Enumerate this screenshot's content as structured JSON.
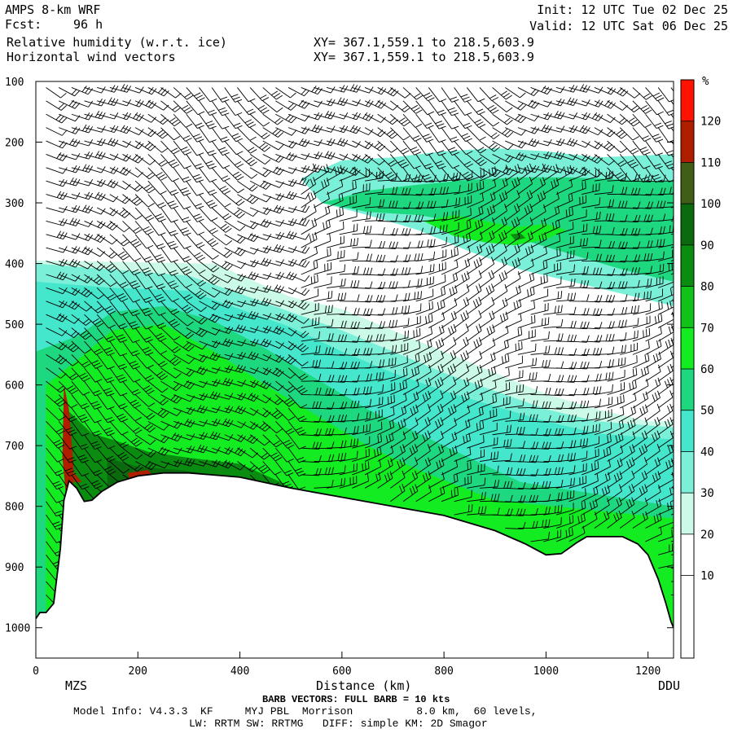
{
  "header": {
    "model": "AMPS 8-km WRF",
    "forecast_label": "Fcst:",
    "forecast_value": "96 h",
    "field1": "Relative humidity (w.r.t. ice)",
    "field2": "Horizontal wind vectors",
    "xy1": "XY= 367.1,559.1 to 218.5,603.9",
    "xy2": "XY= 367.1,559.1 to 218.5,603.9",
    "init": "Init: 12 UTC Tue 02 Dec 25",
    "valid": "Valid: 12 UTC Sat 06 Dec 25"
  },
  "footer": {
    "barb_note": "BARB VECTORS: FULL BARB = 10 kts",
    "model_info": "Model Info: V4.3.3  KF     MYJ PBL  Morrison          8.0 km,  60 levels,",
    "physics": "LW: RRTM SW: RRTMG   DIFF: simple KM: 2D Smagor"
  },
  "colorbar": {
    "unit": "%",
    "levels": [
      10,
      20,
      30,
      40,
      50,
      60,
      70,
      80,
      90,
      100,
      110,
      120
    ],
    "labels": [
      "10",
      "20",
      "30",
      "40",
      "50",
      "60",
      "70",
      "80",
      "90",
      "100",
      "110",
      "120"
    ],
    "colors": [
      "#ffffff",
      "#ffffff",
      "#ffffff",
      "#ccfae8",
      "#7af0d8",
      "#44e6cc",
      "#1ed880",
      "#14ec22",
      "#10c21a",
      "#0a8c10",
      "#0b6a0d",
      "#3e5f15",
      "#b01e00",
      "#ff1300"
    ]
  },
  "chart_data": {
    "type": "heatmap",
    "title": "Relative humidity (w.r.t. ice)",
    "xlabel": "Distance (km)",
    "ylabel": "",
    "xlim": [
      0,
      1250
    ],
    "ylim": [
      1050,
      100
    ],
    "x_ticks": [
      0,
      200,
      400,
      600,
      800,
      1000,
      1200
    ],
    "x_tick_labels": [
      "0",
      "200",
      "400",
      "600",
      "800",
      "1000",
      "1200"
    ],
    "y_ticks": [
      100,
      200,
      300,
      400,
      500,
      600,
      700,
      800,
      900,
      1000
    ],
    "y_tick_labels": [
      "100",
      "200",
      "300",
      "400",
      "500",
      "600",
      "700",
      "800",
      "900",
      "1000"
    ],
    "endpoints": {
      "left": "MZS",
      "right": "DDU"
    },
    "terrain_pressure": {
      "x": [
        0,
        8,
        20,
        35,
        48,
        55,
        65,
        80,
        95,
        110,
        130,
        160,
        200,
        250,
        300,
        400,
        500,
        600,
        700,
        800,
        900,
        960,
        1000,
        1030,
        1060,
        1080,
        1100,
        1150,
        1180,
        1200,
        1220,
        1235,
        1245,
        1250
      ],
      "p": [
        985,
        975,
        975,
        960,
        870,
        790,
        758,
        770,
        792,
        790,
        775,
        760,
        750,
        745,
        745,
        752,
        770,
        785,
        800,
        815,
        840,
        862,
        880,
        878,
        860,
        850,
        850,
        850,
        862,
        880,
        920,
        960,
        990,
        1000
      ]
    },
    "rh_regions": [
      {
        "name": "",
        "value": 35,
        "points": [
          [
            0,
            395
          ],
          [
            200,
            398
          ],
          [
            350,
            400
          ],
          [
            430,
            430
          ],
          [
            500,
            455
          ],
          [
            600,
            475
          ],
          [
            700,
            510
          ],
          [
            800,
            545
          ],
          [
            900,
            580
          ],
          [
            1000,
            615
          ],
          [
            1100,
            640
          ],
          [
            1200,
            660
          ],
          [
            1250,
            660
          ],
          [
            1250,
            1000
          ],
          [
            0,
            1000
          ]
        ]
      },
      {
        "name": "",
        "value": 45,
        "points": [
          [
            0,
            400
          ],
          [
            150,
            410
          ],
          [
            300,
            420
          ],
          [
            400,
            450
          ],
          [
            500,
            480
          ],
          [
            600,
            510
          ],
          [
            700,
            545
          ],
          [
            800,
            580
          ],
          [
            900,
            610
          ],
          [
            1000,
            640
          ],
          [
            1100,
            660
          ],
          [
            1250,
            670
          ],
          [
            1250,
            1000
          ],
          [
            0,
            1000
          ]
        ]
      },
      {
        "name": "",
        "value": 55,
        "points": [
          [
            0,
            430
          ],
          [
            150,
            440
          ],
          [
            300,
            445
          ],
          [
            400,
            475
          ],
          [
            500,
            505
          ],
          [
            600,
            545
          ],
          [
            700,
            580
          ],
          [
            800,
            610
          ],
          [
            900,
            635
          ],
          [
            1000,
            660
          ],
          [
            1100,
            680
          ],
          [
            1250,
            690
          ],
          [
            1250,
            1000
          ],
          [
            0,
            1000
          ]
        ]
      },
      {
        "name": "",
        "value": 65,
        "points": [
          [
            0,
            545
          ],
          [
            80,
            520
          ],
          [
            150,
            480
          ],
          [
            250,
            470
          ],
          [
            350,
            495
          ],
          [
            450,
            540
          ],
          [
            550,
            590
          ],
          [
            650,
            640
          ],
          [
            750,
            680
          ],
          [
            850,
            720
          ],
          [
            950,
            760
          ],
          [
            1100,
            780
          ],
          [
            1250,
            800
          ],
          [
            1250,
            1000
          ],
          [
            0,
            1000
          ]
        ]
      },
      {
        "name": "",
        "value": 75,
        "points": [
          [
            20,
            600
          ],
          [
            80,
            560
          ],
          [
            150,
            510
          ],
          [
            250,
            500
          ],
          [
            350,
            545
          ],
          [
            450,
            600
          ],
          [
            550,
            650
          ],
          [
            650,
            700
          ],
          [
            750,
            740
          ],
          [
            900,
            790
          ],
          [
            1250,
            820
          ],
          [
            1250,
            1000
          ],
          [
            20,
            1000
          ]
        ]
      },
      {
        "name": "",
        "value": 90,
        "points": [
          [
            60,
            640
          ],
          [
            110,
            680
          ],
          [
            150,
            690
          ],
          [
            220,
            710
          ],
          [
            300,
            720
          ],
          [
            400,
            730
          ],
          [
            480,
            760
          ],
          [
            560,
            800
          ],
          [
            480,
            800
          ],
          [
            100,
            800
          ],
          [
            60,
            760
          ]
        ]
      },
      {
        "name": "",
        "value": 105,
        "points": [
          [
            140,
            720
          ],
          [
            200,
            735
          ],
          [
            280,
            740
          ],
          [
            350,
            748
          ],
          [
            420,
            760
          ],
          [
            420,
            770
          ],
          [
            140,
            770
          ]
        ]
      },
      {
        "name": "",
        "value": 125,
        "points": [
          [
            55,
            600
          ],
          [
            65,
            640
          ],
          [
            70,
            690
          ],
          [
            75,
            750
          ],
          [
            70,
            780
          ],
          [
            60,
            790
          ],
          [
            52,
            720
          ]
        ]
      },
      {
        "name": "",
        "value": 125,
        "points": [
          [
            75,
            745
          ],
          [
            90,
            760
          ],
          [
            75,
            760
          ]
        ]
      },
      {
        "name": "",
        "value": 125,
        "points": [
          [
            180,
            745
          ],
          [
            220,
            740
          ],
          [
            230,
            750
          ],
          [
            185,
            758
          ]
        ]
      },
      {
        "name": "",
        "value": 45,
        "points": [
          [
            520,
            260
          ],
          [
            600,
            230
          ],
          [
            700,
            225
          ],
          [
            800,
            215
          ],
          [
            900,
            210
          ],
          [
            1000,
            215
          ],
          [
            1100,
            225
          ],
          [
            1250,
            220
          ],
          [
            1250,
            470
          ],
          [
            1150,
            450
          ],
          [
            1050,
            430
          ],
          [
            950,
            410
          ],
          [
            850,
            380
          ],
          [
            750,
            345
          ],
          [
            650,
            320
          ],
          [
            560,
            300
          ]
        ]
      },
      {
        "name": "",
        "value": 65,
        "points": [
          [
            560,
            300
          ],
          [
            650,
            280
          ],
          [
            750,
            270
          ],
          [
            850,
            262
          ],
          [
            950,
            258
          ],
          [
            1050,
            258
          ],
          [
            1150,
            262
          ],
          [
            1250,
            265
          ],
          [
            1250,
            430
          ],
          [
            1150,
            410
          ],
          [
            1050,
            385
          ],
          [
            950,
            360
          ],
          [
            850,
            335
          ],
          [
            750,
            320
          ],
          [
            650,
            315
          ]
        ]
      },
      {
        "name": "",
        "value": 75,
        "points": [
          [
            760,
            330
          ],
          [
            820,
            320
          ],
          [
            880,
            330
          ],
          [
            940,
            340
          ],
          [
            1000,
            335
          ],
          [
            1040,
            345
          ],
          [
            1000,
            360
          ],
          [
            940,
            370
          ],
          [
            880,
            365
          ],
          [
            820,
            355
          ]
        ]
      },
      {
        "name": "",
        "value": 90,
        "points": [
          [
            930,
            352
          ],
          [
            950,
            350
          ],
          [
            960,
            358
          ],
          [
            940,
            362
          ]
        ]
      }
    ],
    "wind_barb_columns_x": [
      20,
      45,
      70,
      95,
      120,
      145,
      170,
      195,
      220,
      245,
      270,
      295,
      320,
      345,
      370,
      395,
      420,
      445,
      470,
      495,
      520,
      545,
      570,
      595,
      620,
      645,
      670,
      695,
      720,
      745,
      770,
      795,
      820,
      845,
      870,
      895,
      920,
      945,
      970,
      995,
      1020,
      1045,
      1070,
      1095,
      1120,
      1145,
      1170,
      1195,
      1220,
      1245
    ],
    "wind_barb_full_barb_kts": 10
  }
}
